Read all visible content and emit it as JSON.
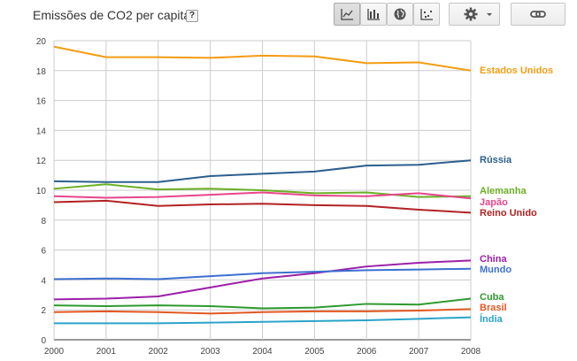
{
  "header": {
    "title": "Emissões de CO2 per capita",
    "help_label": "?"
  },
  "toolbar": {
    "chart_buttons": [
      {
        "icon": "line-chart-icon",
        "active": true
      },
      {
        "icon": "bar-chart-icon",
        "active": false
      },
      {
        "icon": "globe-map-icon",
        "active": false
      },
      {
        "icon": "scatter-chart-icon",
        "active": false
      }
    ],
    "settings_icon": "gear-icon",
    "dropdown_icon": "chevron-down-icon",
    "link_icon": "link-icon"
  },
  "chart_data": {
    "type": "line",
    "title": "",
    "xlabel": "",
    "ylabel": "",
    "x": [
      2000,
      2001,
      2002,
      2003,
      2004,
      2005,
      2006,
      2007,
      2008
    ],
    "xlim": [
      2000,
      2008
    ],
    "ylim": [
      0,
      20
    ],
    "yticks": [
      0,
      2,
      4,
      6,
      8,
      10,
      12,
      14,
      16,
      18,
      20
    ],
    "grid": true,
    "legend": "right (labels at line ends)",
    "series": [
      {
        "name": "Estados Unidos",
        "color": "#f39c12",
        "values": [
          19.6,
          18.9,
          18.9,
          18.85,
          19.0,
          18.95,
          18.5,
          18.55,
          18.0
        ]
      },
      {
        "name": "Rússia",
        "color": "#2c5f8d",
        "values": [
          10.6,
          10.55,
          10.55,
          10.95,
          11.1,
          11.25,
          11.65,
          11.7,
          12.0
        ]
      },
      {
        "name": "Alemanha",
        "color": "#6ab023",
        "values": [
          10.1,
          10.4,
          10.05,
          10.1,
          10.0,
          9.8,
          9.85,
          9.55,
          9.6
        ]
      },
      {
        "name": "Japão",
        "color": "#e8458b",
        "values": [
          9.6,
          9.5,
          9.55,
          9.7,
          9.85,
          9.65,
          9.6,
          9.8,
          9.45
        ]
      },
      {
        "name": "Reino Unido",
        "color": "#b22222",
        "values": [
          9.2,
          9.3,
          8.95,
          9.05,
          9.1,
          9.0,
          8.95,
          8.7,
          8.5
        ]
      },
      {
        "name": "China",
        "color": "#9b1fa8",
        "values": [
          2.7,
          2.75,
          2.9,
          3.5,
          4.1,
          4.45,
          4.9,
          5.15,
          5.3
        ]
      },
      {
        "name": "Mundo",
        "color": "#3d6fd1",
        "values": [
          4.05,
          4.1,
          4.05,
          4.25,
          4.45,
          4.55,
          4.65,
          4.7,
          4.75
        ]
      },
      {
        "name": "Cuba",
        "color": "#2e9a2e",
        "values": [
          2.3,
          2.25,
          2.3,
          2.25,
          2.1,
          2.15,
          2.4,
          2.35,
          2.75
        ]
      },
      {
        "name": "Brasil",
        "color": "#e25822",
        "values": [
          1.85,
          1.9,
          1.85,
          1.75,
          1.85,
          1.9,
          1.9,
          1.95,
          2.05
        ]
      },
      {
        "name": "Índia",
        "color": "#2aa3c9",
        "values": [
          1.1,
          1.1,
          1.1,
          1.15,
          1.2,
          1.25,
          1.3,
          1.4,
          1.5
        ]
      }
    ]
  }
}
